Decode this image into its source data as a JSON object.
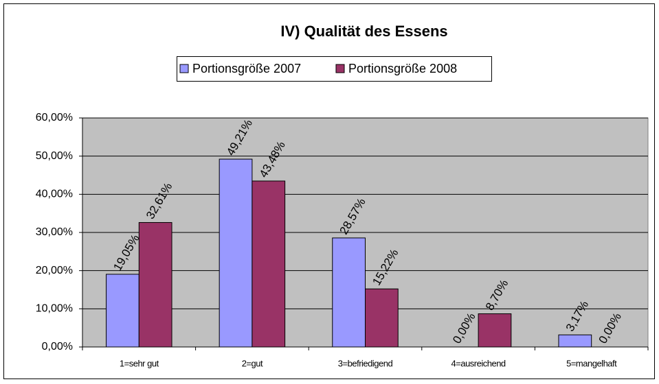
{
  "chart_data": {
    "type": "bar",
    "title": "IV) Qualität des Essens",
    "categories": [
      "1=sehr gut",
      "2=gut",
      "3=befriedigend",
      "4=ausreichend",
      "5=mangelhaft"
    ],
    "series": [
      {
        "name": "Portionsgröße 2007",
        "color": "#9999ff",
        "values": [
          19.05,
          49.21,
          28.57,
          0,
          3.17
        ],
        "value_labels": [
          "19,05%",
          "49,21%",
          "28,57%",
          "0,00%",
          "3,17%"
        ]
      },
      {
        "name": "Portionsgröße 2008",
        "color": "#993366",
        "values": [
          32.61,
          43.48,
          15.22,
          8.7,
          0
        ],
        "value_labels": [
          "32,61%",
          "43,48%",
          "15,22%",
          "8,70%",
          "0,00%"
        ]
      }
    ],
    "ylim": [
      0,
      60
    ],
    "yticks": [
      {
        "value": 0,
        "label": "0,00%"
      },
      {
        "value": 10,
        "label": "10,00%"
      },
      {
        "value": 20,
        "label": "20,00%"
      },
      {
        "value": 30,
        "label": "30,00%"
      },
      {
        "value": 40,
        "label": "40,00%"
      },
      {
        "value": 50,
        "label": "50,00%"
      },
      {
        "value": 60,
        "label": "60,00%"
      }
    ],
    "grid": true,
    "legend": "top"
  }
}
